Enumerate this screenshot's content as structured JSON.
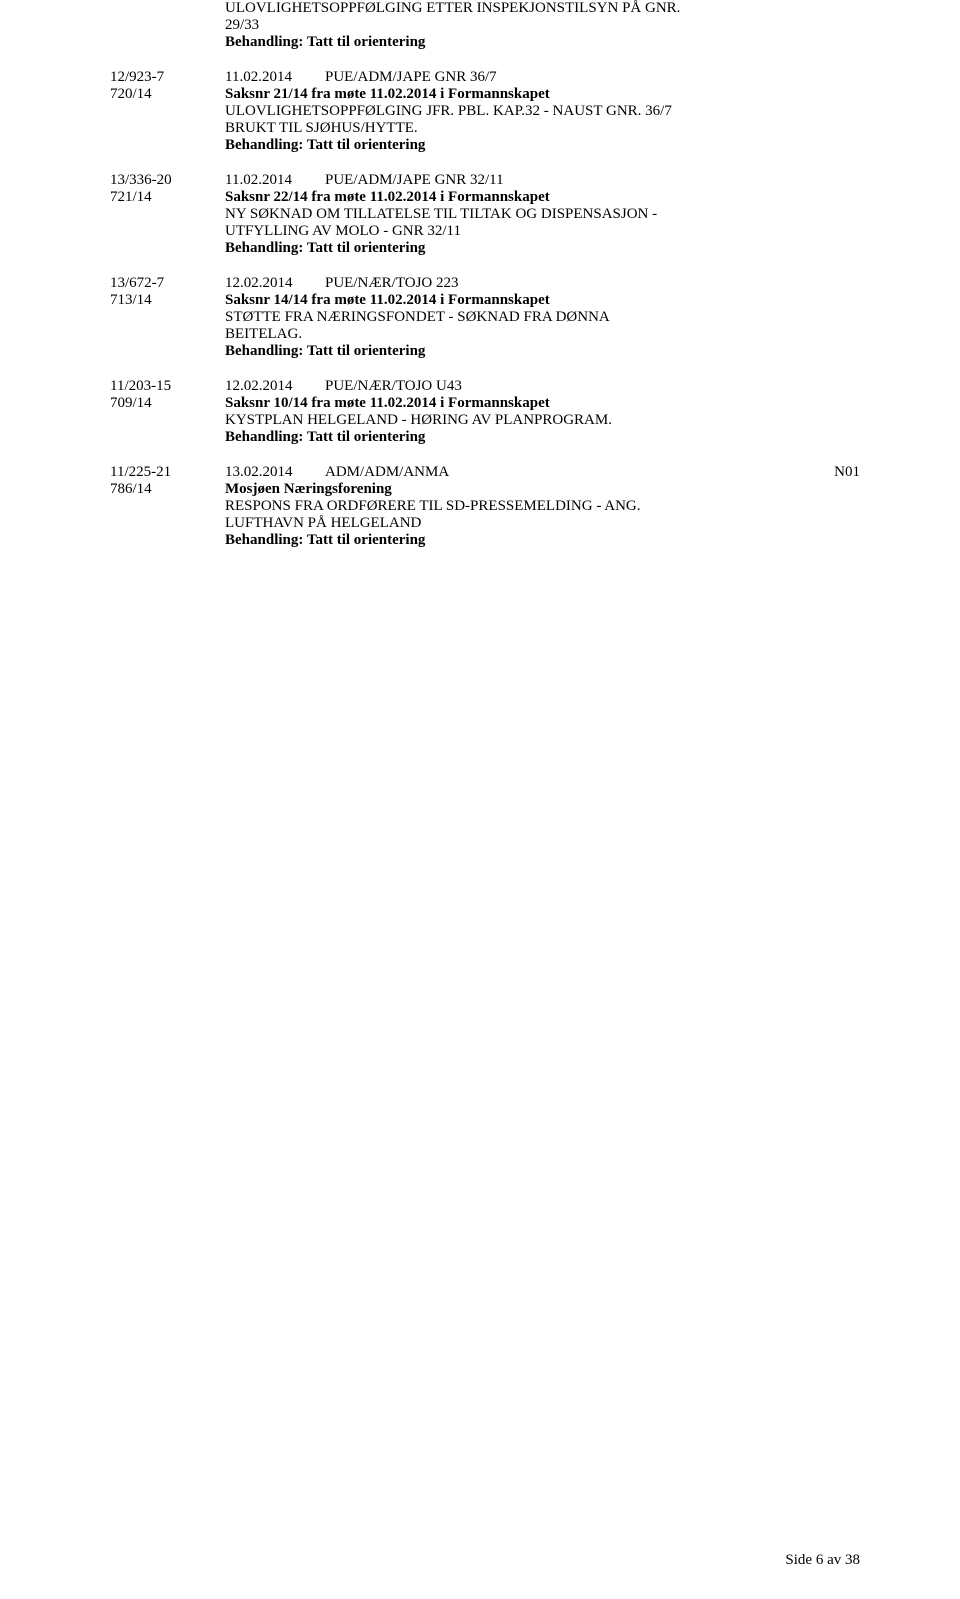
{
  "colors": {
    "text": "#000000",
    "bg": "#ffffff"
  },
  "typography": {
    "family": "Times New Roman",
    "size_pt": 12
  },
  "intro": {
    "line1": "ULOVLIGHETSOPPFØLGING ETTER INSPEKJONSTILSYN PÅ GNR.",
    "line2": "29/33",
    "behandling": "Behandling: Tatt til orientering"
  },
  "entries": [
    {
      "leftTop": "12/923-7",
      "leftBottom": "720/14",
      "date": "11.02.2014",
      "code": "PUE/ADM/JAPE  GNR 36/7",
      "sak": "Saksnr 21/14 fra møte 11.02.2014 i Formannskapet",
      "body": [
        "ULOVLIGHETSOPPFØLGING JFR. PBL. KAP.32 - NAUST GNR. 36/7",
        "BRUKT TIL SJØHUS/HYTTE."
      ],
      "behandling": "Behandling: Tatt til orientering"
    },
    {
      "leftTop": "13/336-20",
      "leftBottom": "721/14",
      "date": "11.02.2014",
      "code": "PUE/ADM/JAPE  GNR 32/11",
      "sak": "Saksnr 22/14 fra møte 11.02.2014 i Formannskapet",
      "body": [
        "NY SØKNAD OM TILLATELSE TIL TILTAK OG DISPENSASJON -",
        "UTFYLLING AV MOLO - GNR 32/11"
      ],
      "behandling": "Behandling: Tatt til orientering"
    },
    {
      "leftTop": "13/672-7",
      "leftBottom": "713/14",
      "date": "12.02.2014",
      "code": "PUE/NÆR/TOJO  223",
      "sak": "Saksnr 14/14 fra møte 11.02.2014 i Formannskapet",
      "body": [
        "STØTTE FRA NÆRINGSFONDET - SØKNAD FRA DØNNA",
        "BEITELAG."
      ],
      "behandling": "Behandling: Tatt til orientering"
    },
    {
      "leftTop": "11/203-15",
      "leftBottom": "709/14",
      "date": "12.02.2014",
      "code": "PUE/NÆR/TOJO  U43",
      "sak": "Saksnr 10/14 fra møte 11.02.2014 i Formannskapet",
      "body": [
        "KYSTPLAN HELGELAND - HØRING AV PLANPROGRAM."
      ],
      "behandling": "Behandling: Tatt til orientering"
    },
    {
      "leftTop": "11/225-21",
      "leftBottom": "786/14",
      "date": "13.02.2014",
      "code": "ADM/ADM/ANMA",
      "codeExtra": "N01",
      "sak": "Mosjøen Næringsforening",
      "body": [
        "RESPONS FRA ORDFØRERE TIL SD-PRESSEMELDING - ANG.",
        "LUFTHAVN PÅ HELGELAND"
      ],
      "behandling": "Behandling: Tatt til orientering"
    }
  ],
  "pageNum": "Side 6 av 38"
}
